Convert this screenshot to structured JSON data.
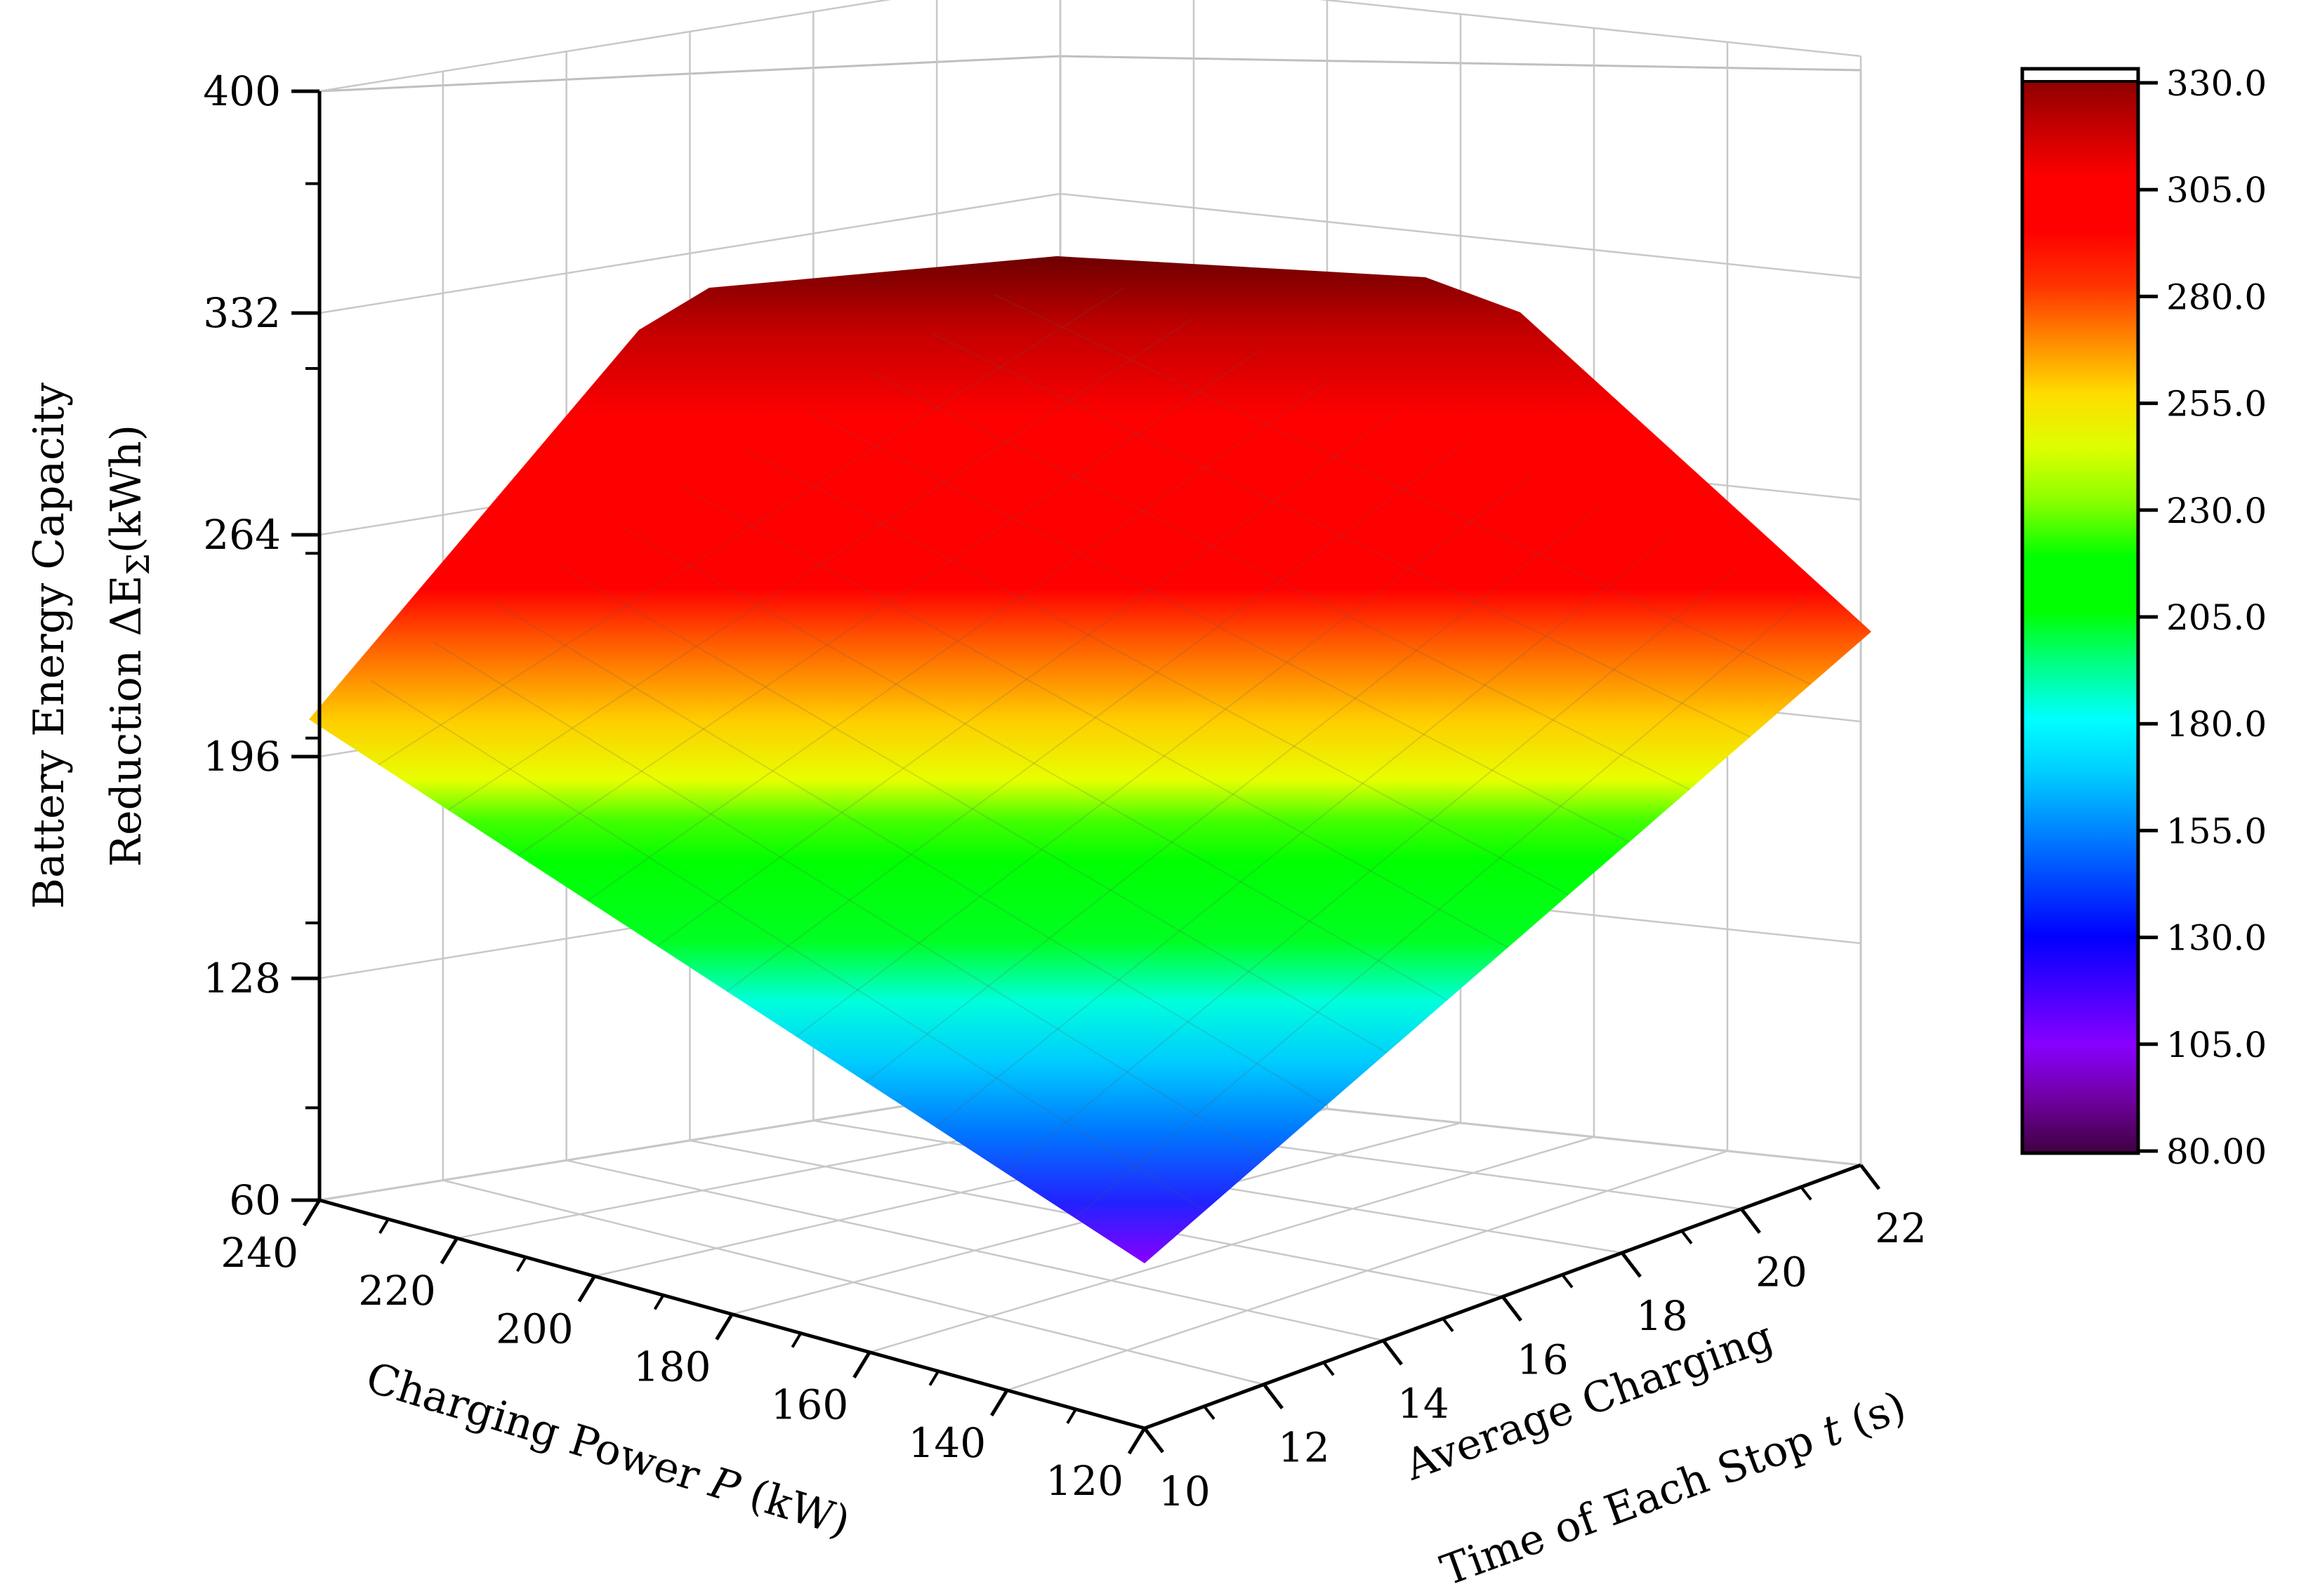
{
  "chart_data": {
    "type": "surface3d",
    "title": "",
    "x_axis": {
      "label_prefix": "Charging Power ",
      "label_var": "P",
      "label_suffix": " (kW)",
      "ticks": [
        240,
        220,
        200,
        180,
        160,
        140,
        120
      ],
      "range": [
        120,
        240
      ]
    },
    "y_axis": {
      "label_line1": "Average Charging",
      "label_line2_prefix": "Time of Each Stop ",
      "label_line2_var": "t",
      "label_line2_suffix": " (s)",
      "ticks": [
        10,
        12,
        14,
        16,
        18,
        20,
        22
      ],
      "range": [
        10,
        22
      ]
    },
    "z_axis": {
      "label_line1": "Battery Energy Capacity",
      "label_line2_prefix": "Reduction ΔE",
      "label_line2_sub": "Σ",
      "label_line2_suffix": "(kWh)",
      "ticks": [
        "400",
        "332",
        "264",
        "196",
        "128",
        "60"
      ],
      "range": [
        60,
        400
      ]
    },
    "surface": {
      "description_values": {
        "corner_P120_t10": 90,
        "corner_P240_t10": 212,
        "corner_P120_t22": 226,
        "max_plateau": 330
      }
    },
    "colorbar": {
      "ticks": [
        "330.0",
        "305.0",
        "280.0",
        "255.0",
        "230.0",
        "205.0",
        "180.0",
        "155.0",
        "130.0",
        "105.0",
        "80.00"
      ],
      "range": [
        80,
        330
      ],
      "colors": [
        "#800000",
        "#c00000",
        "#ff0000",
        "#ff0000",
        "#ff3300",
        "#ff8800",
        "#ffdd00",
        "#ddff00",
        "#88ff00",
        "#00ff00",
        "#00ff00",
        "#00ff88",
        "#00ffff",
        "#00ccff",
        "#0088ff",
        "#0044ff",
        "#0000ff",
        "#4400ff",
        "#8800ff",
        "#7000a0",
        "#400040"
      ]
    }
  }
}
